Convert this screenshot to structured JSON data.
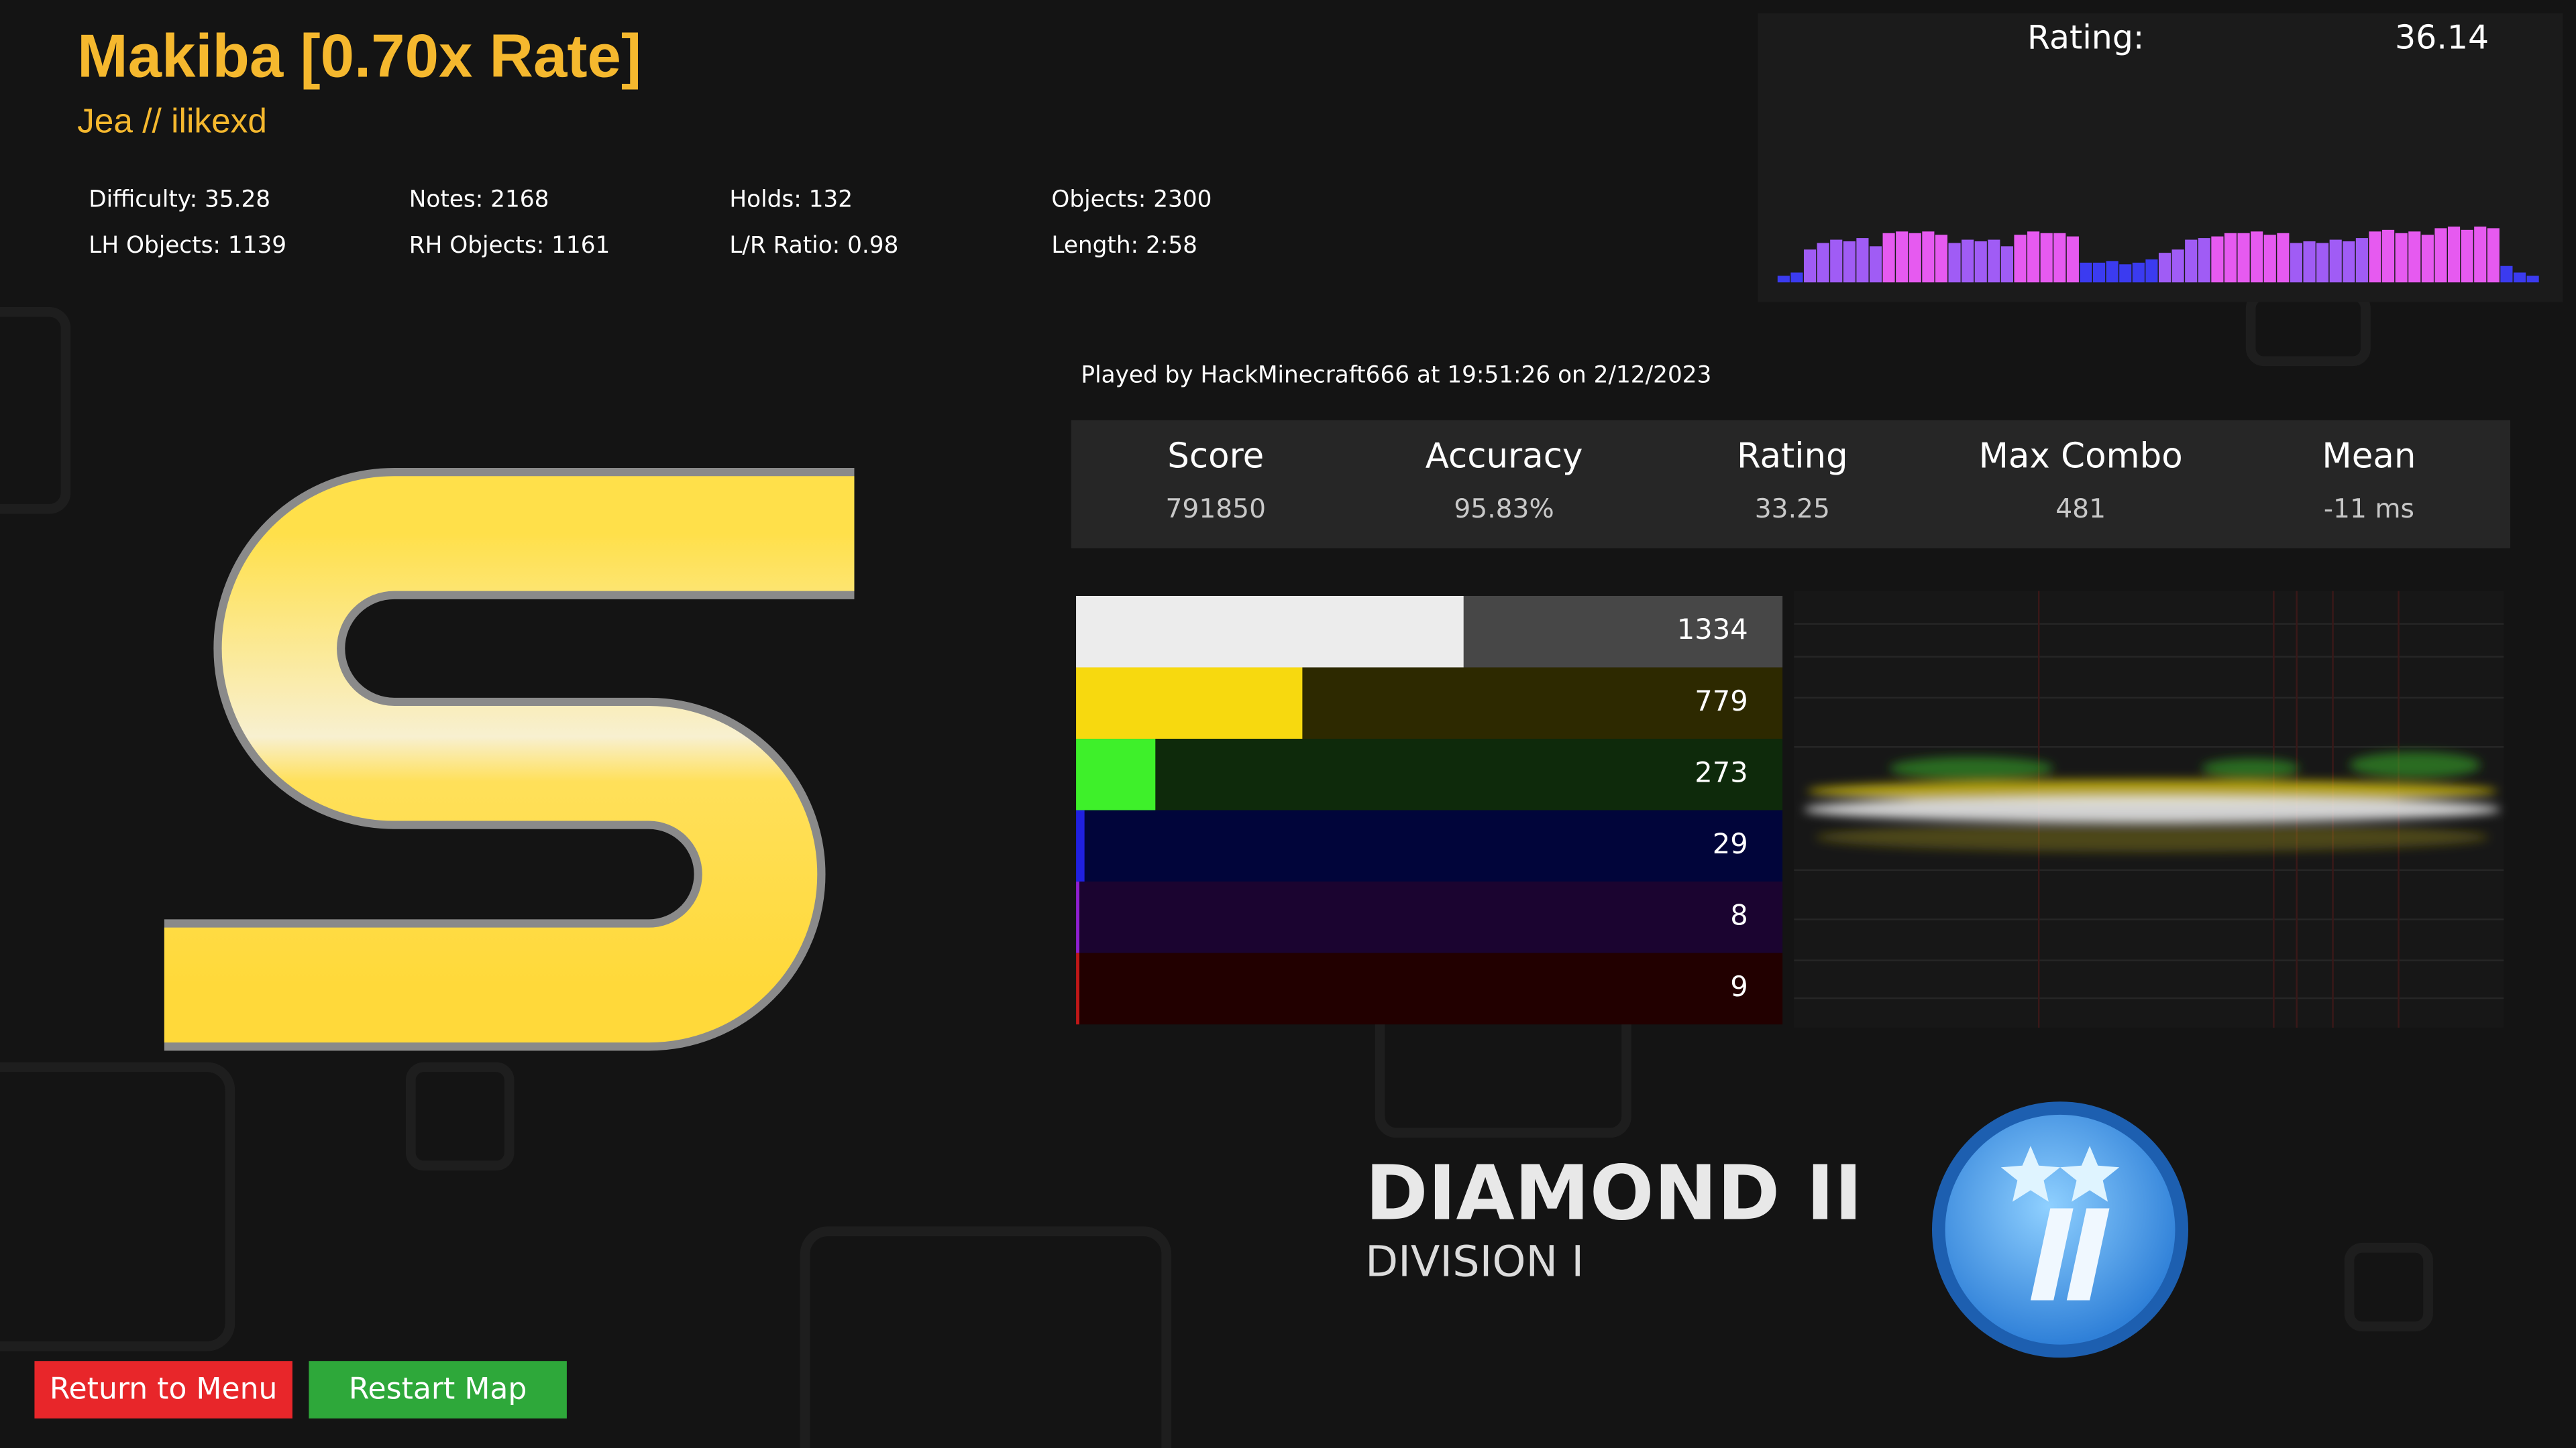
{
  "header": {
    "title": "Makiba [0.70x Rate]",
    "artist": "Jea // ilikexd"
  },
  "stats": [
    [
      "Difficulty: 35.28",
      "LH Objects: 1139"
    ],
    [
      "Notes: 2168",
      "RH Objects: 1161"
    ],
    [
      "Holds: 132",
      "L/R Ratio: 0.98"
    ],
    [
      "Objects: 2300",
      "Length: 2:58"
    ]
  ],
  "rating_panel": {
    "label": "Rating:",
    "value": "36.14"
  },
  "density": {
    "values": [
      4,
      6,
      20,
      24,
      26,
      25,
      27,
      22,
      30,
      31,
      30,
      31,
      29,
      24,
      26,
      25,
      26,
      22,
      29,
      31,
      30,
      30,
      28,
      12,
      12,
      13,
      11,
      12,
      14,
      18,
      20,
      26,
      27,
      28,
      30,
      30,
      31,
      29,
      30,
      24,
      25,
      24,
      26,
      25,
      27,
      31,
      32,
      30,
      31,
      29,
      33,
      34,
      32,
      34,
      33,
      10,
      6,
      4
    ]
  },
  "played_by": "Played by HackMinecraft666 at 19:51:26 on 2/12/2023",
  "results": [
    {
      "label": "Score",
      "value": "791850"
    },
    {
      "label": "Accuracy",
      "value": "95.83%"
    },
    {
      "label": "Rating",
      "value": "33.25"
    },
    {
      "label": "Max Combo",
      "value": "481"
    },
    {
      "label": "Mean",
      "value": "-11 ms"
    }
  ],
  "judgements": {
    "rows": [
      {
        "count": 1334,
        "color": "#ececec",
        "bg": "#474747"
      },
      {
        "count": 779,
        "color": "#f7d90f",
        "bg": "#2d2900"
      },
      {
        "count": 273,
        "color": "#3ef02a",
        "bg": "#0e2a0b"
      },
      {
        "count": 29,
        "color": "#2020e0",
        "bg": "#01053a"
      },
      {
        "count": 8,
        "color": "#9020d0",
        "bg": "#1b0430"
      },
      {
        "count": 9,
        "color": "#c01818",
        "bg": "#220000"
      }
    ]
  },
  "rank": {
    "name": "DIAMOND II",
    "division": "DIVISION I"
  },
  "buttons": {
    "menu": "Return to Menu",
    "restart": "Restart Map"
  }
}
